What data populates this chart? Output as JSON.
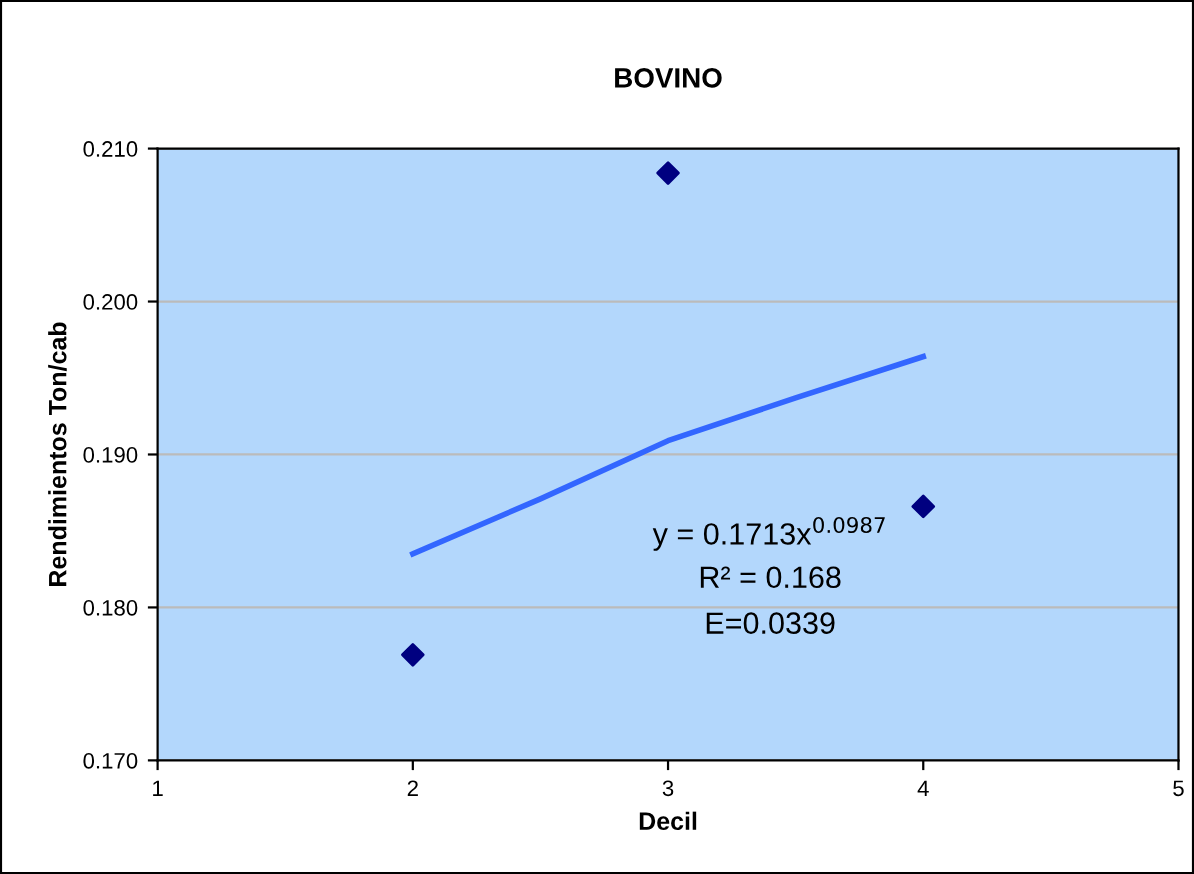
{
  "chart_data": {
    "type": "scatter",
    "title": "BOVINO",
    "xlabel": "Decil",
    "ylabel": "Rendimientos Ton/cab",
    "series": [
      {
        "color": "#000080",
        "x": [
          2,
          3,
          4
        ],
        "values": [
          0.1769,
          0.2084,
          0.1866
        ],
        "marker": "diamond"
      },
      {
        "type": "line",
        "color": "#3366ff",
        "x": [
          2,
          2.5,
          3,
          3.5,
          4
        ],
        "values": [
          0.1835,
          0.1871,
          0.1909,
          0.1937,
          0.1964
        ],
        "line_style": "solid"
      }
    ],
    "annotations": [
      "y = 0.1713x$^{0.0987}$",
      "R² = 0.168",
      "E=0.0339"
    ],
    "xlim": [
      1,
      5
    ],
    "xticks": [
      1,
      2,
      3,
      4,
      5
    ],
    "ylim": [
      0.17,
      0.21
    ],
    "yticks": [
      {
        "value": 0.17,
        "label": "0.170"
      },
      {
        "value": 0.18,
        "label": "0.180"
      },
      {
        "value": 0.19,
        "label": "0.190"
      },
      {
        "value": 0.2,
        "label": "0.200"
      },
      {
        "value": 0.21,
        "label": "0.210"
      }
    ],
    "grid": "y",
    "legend": false
  }
}
